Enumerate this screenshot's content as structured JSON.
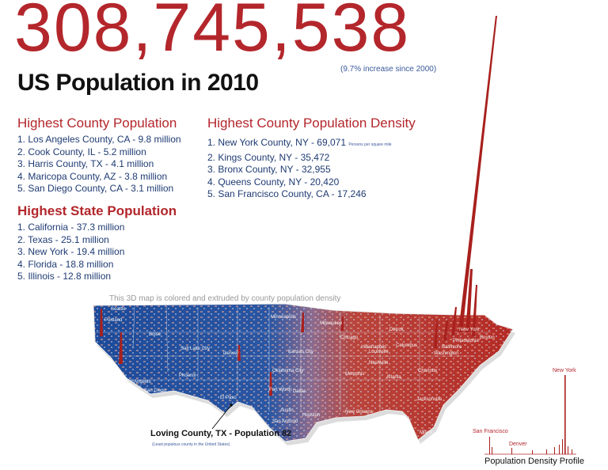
{
  "header": {
    "big_number": "308,745,538",
    "increase_note": "(9.7% increase since 2000)",
    "subtitle": "US Population in 2010"
  },
  "county_population": {
    "title": "Highest County Population",
    "items": [
      "1. Los Angeles County, CA - 9.8 million",
      "2. Cook County, IL - 5.2 million",
      "3. Harris County, TX - 4.1 million",
      "4. Maricopa County, AZ - 3.8 million",
      "5. San Diego County, CA - 3.1 million"
    ]
  },
  "county_density": {
    "title": "Highest County Population Density",
    "unit_note": "Persons per square mile",
    "items": [
      "1. New York County, NY - 69,071",
      "2. Kings County, NY - 35,472",
      "3. Bronx County, NY - 32,955",
      "4. Queens County, NY - 20,420",
      "5. San Francisco County, CA - 17,246"
    ]
  },
  "state_population": {
    "title": "Highest State Population",
    "items": [
      "1. California - 37.3 million",
      "2. Texas - 25.1 million",
      "3. New York - 19.4 million",
      "4. Florida - 18.8 million",
      "5. Illinois - 12.8 million"
    ]
  },
  "map": {
    "caption": "This 3D map is colored and extruded by county population density",
    "cities": [
      "Seattle",
      "Portland",
      "Boise",
      "Salt Lake City",
      "Denver",
      "Los Angeles",
      "San Diego",
      "Phoenix",
      "El Paso",
      "Dallas",
      "Fort Worth",
      "Austin",
      "Houston",
      "San Antonio",
      "New Orleans",
      "Memphis",
      "Nashville",
      "Atlanta",
      "Chicago",
      "Detroit",
      "Indianapolis",
      "Columbus",
      "Philadelphia",
      "Boston",
      "Miami",
      "Jacksonville",
      "Charlotte",
      "Milwaukee",
      "Minneapolis",
      "Kansas City",
      "Oklahoma City",
      "Louisville",
      "Baltimore",
      "Washington",
      "New York"
    ],
    "loving_label": "Loving County, TX - Population 82",
    "loving_note": "(Least populous county in the United States)"
  },
  "profile": {
    "title": "Population Density Profile",
    "labels": [
      "New York",
      "San Francisco",
      "Denver"
    ]
  },
  "colors": {
    "red": "#b3262b",
    "blue": "#1f3b73",
    "map_low": "#1d4a99",
    "map_high": "#b42a24"
  }
}
